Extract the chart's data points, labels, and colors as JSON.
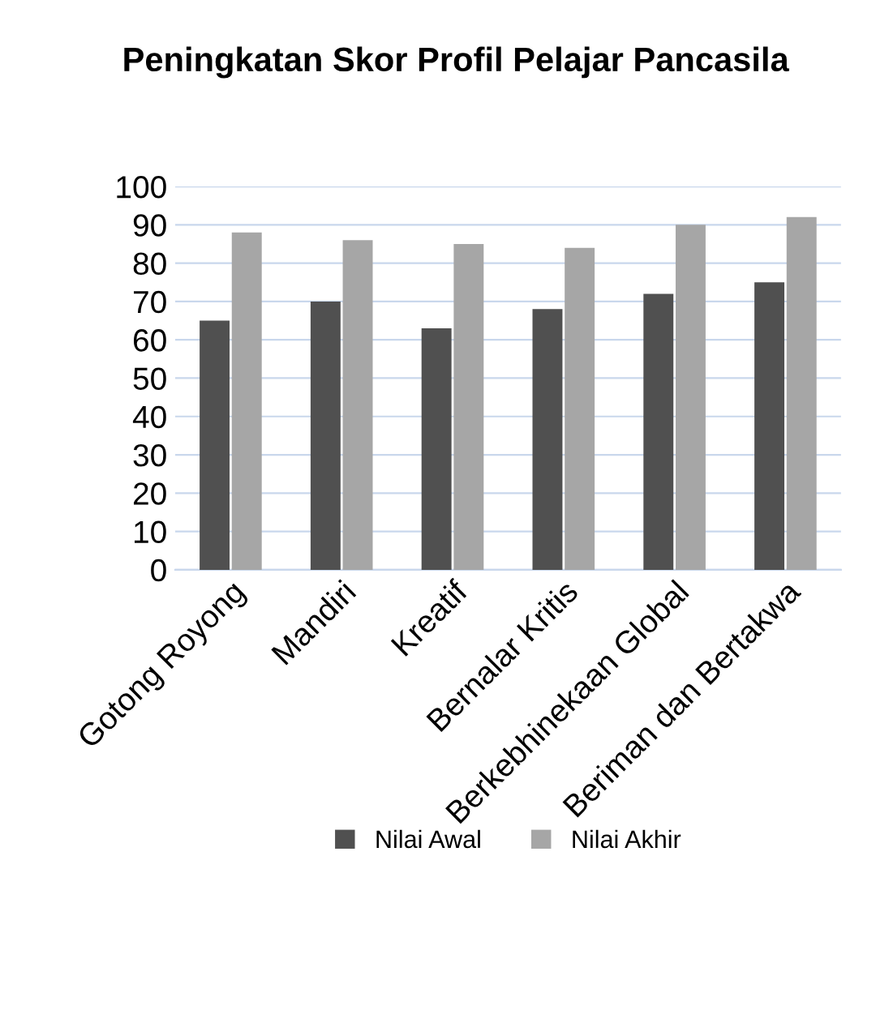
{
  "chart_data": {
    "type": "bar",
    "title": "Peningkatan Skor Profil Pelajar Pancasila",
    "categories": [
      "Gotong Royong",
      "Mandiri",
      "Kreatif",
      "Bernalar Kritis",
      "Berkebhinekaan Global",
      "Beriman dan Bertakwa"
    ],
    "series": [
      {
        "name": "Nilai Awal",
        "color": "#505050",
        "values": [
          65,
          70,
          63,
          68,
          72,
          75
        ]
      },
      {
        "name": "Nilai Akhir",
        "color": "#a6a6a6",
        "values": [
          88,
          86,
          85,
          84,
          90,
          92
        ]
      }
    ],
    "ylim": [
      0,
      100
    ],
    "yticks": [
      0,
      10,
      20,
      30,
      40,
      50,
      60,
      70,
      80,
      90,
      100
    ],
    "grid": "y",
    "legend": "bottom"
  }
}
